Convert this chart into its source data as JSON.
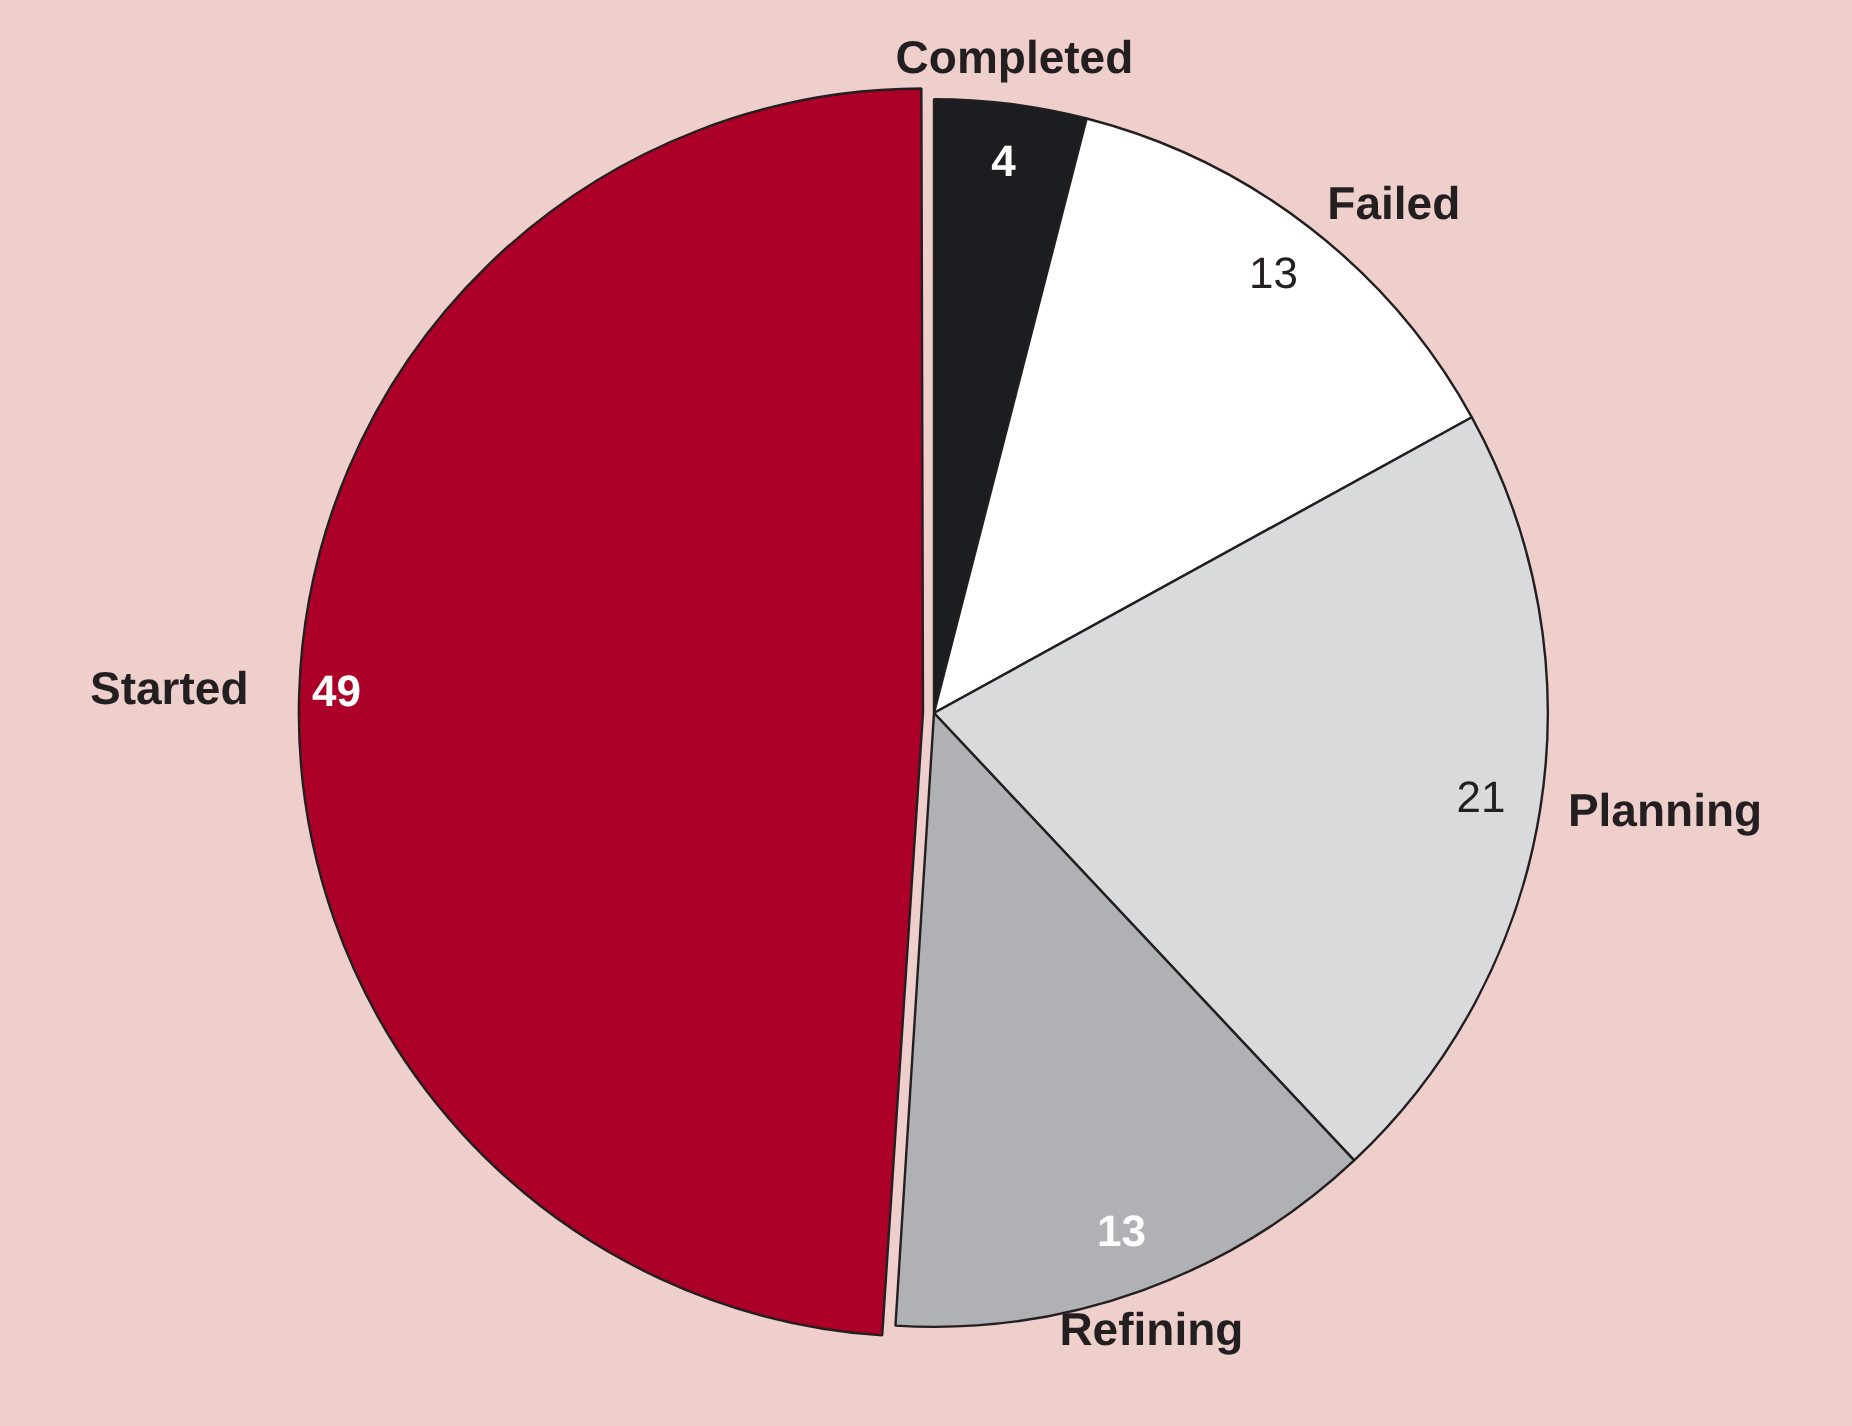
{
  "chart_data": {
    "type": "pie",
    "categories": [
      "Completed",
      "Failed",
      "Planning",
      "Refining",
      "Started"
    ],
    "values": [
      4,
      13,
      21,
      13,
      49
    ],
    "colors": [
      "#1c1d21",
      "#ffffff",
      "#d9dadc",
      "#b0b1b4",
      "#ad0029"
    ],
    "data_labels": true,
    "legend": false
  }
}
